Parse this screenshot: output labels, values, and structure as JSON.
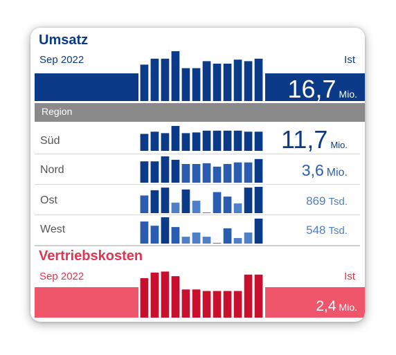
{
  "colors": {
    "navy": "#0b3a88",
    "row_dark": "#0b3a88",
    "row_mid": "#2a5db0",
    "row_light": "#4f7fc7",
    "red_band": "#f0566b",
    "red_bar": "#c8102e",
    "region_bar": "#8a8a8a"
  },
  "umsatz": {
    "title": "Umsatz",
    "period": "Sep 2022",
    "status": "Ist",
    "value": "16,7",
    "unit": "Mio."
  },
  "region": {
    "header": "Region",
    "rows": [
      {
        "name": "Süd",
        "value": "11,7",
        "unit": "Mio."
      },
      {
        "name": "Nord",
        "value": "3,6",
        "unit": "Mio."
      },
      {
        "name": "Ost",
        "value": "869",
        "unit": "Tsd."
      },
      {
        "name": "West",
        "value": "548",
        "unit": "Tsd."
      }
    ]
  },
  "vertriebskosten": {
    "title": "Vertriebskosten",
    "period": "Sep 2022",
    "status": "Ist",
    "value": "2,4",
    "unit": "Mio."
  },
  "chart_data": [
    {
      "type": "bar",
      "name": "Umsatz",
      "values": [
        0.73,
        0.85,
        0.85,
        1.0,
        0.66,
        0.66,
        0.8,
        0.75,
        0.75,
        0.83,
        0.8,
        0.85
      ]
    },
    {
      "type": "bar",
      "name": "Süd",
      "values": [
        0.68,
        0.77,
        0.71,
        1.0,
        0.71,
        0.74,
        0.81,
        0.81,
        0.81,
        0.81,
        0.77,
        0.77
      ]
    },
    {
      "type": "bar",
      "name": "Nord",
      "values": [
        0.81,
        0.81,
        1.0,
        0.87,
        0.71,
        0.71,
        0.74,
        0.61,
        0.71,
        0.77,
        0.77,
        0.9
      ]
    },
    {
      "type": "bar",
      "name": "Ost",
      "values": [
        0.67,
        0.87,
        0.97,
        0.4,
        0.9,
        0.47,
        0.03,
        0.8,
        0.63,
        0.37,
        0.97,
        1.0
      ]
    },
    {
      "type": "bar",
      "name": "West",
      "values": [
        0.84,
        0.68,
        1.0,
        0.63,
        0.26,
        0.42,
        0.26,
        0.03,
        0.58,
        0.21,
        0.42,
        0.95
      ]
    },
    {
      "type": "bar",
      "name": "Vertriebskosten",
      "values": [
        0.77,
        0.88,
        0.9,
        0.81,
        0.55,
        0.55,
        0.52,
        0.52,
        0.52,
        0.52,
        0.84,
        0.84
      ]
    }
  ]
}
